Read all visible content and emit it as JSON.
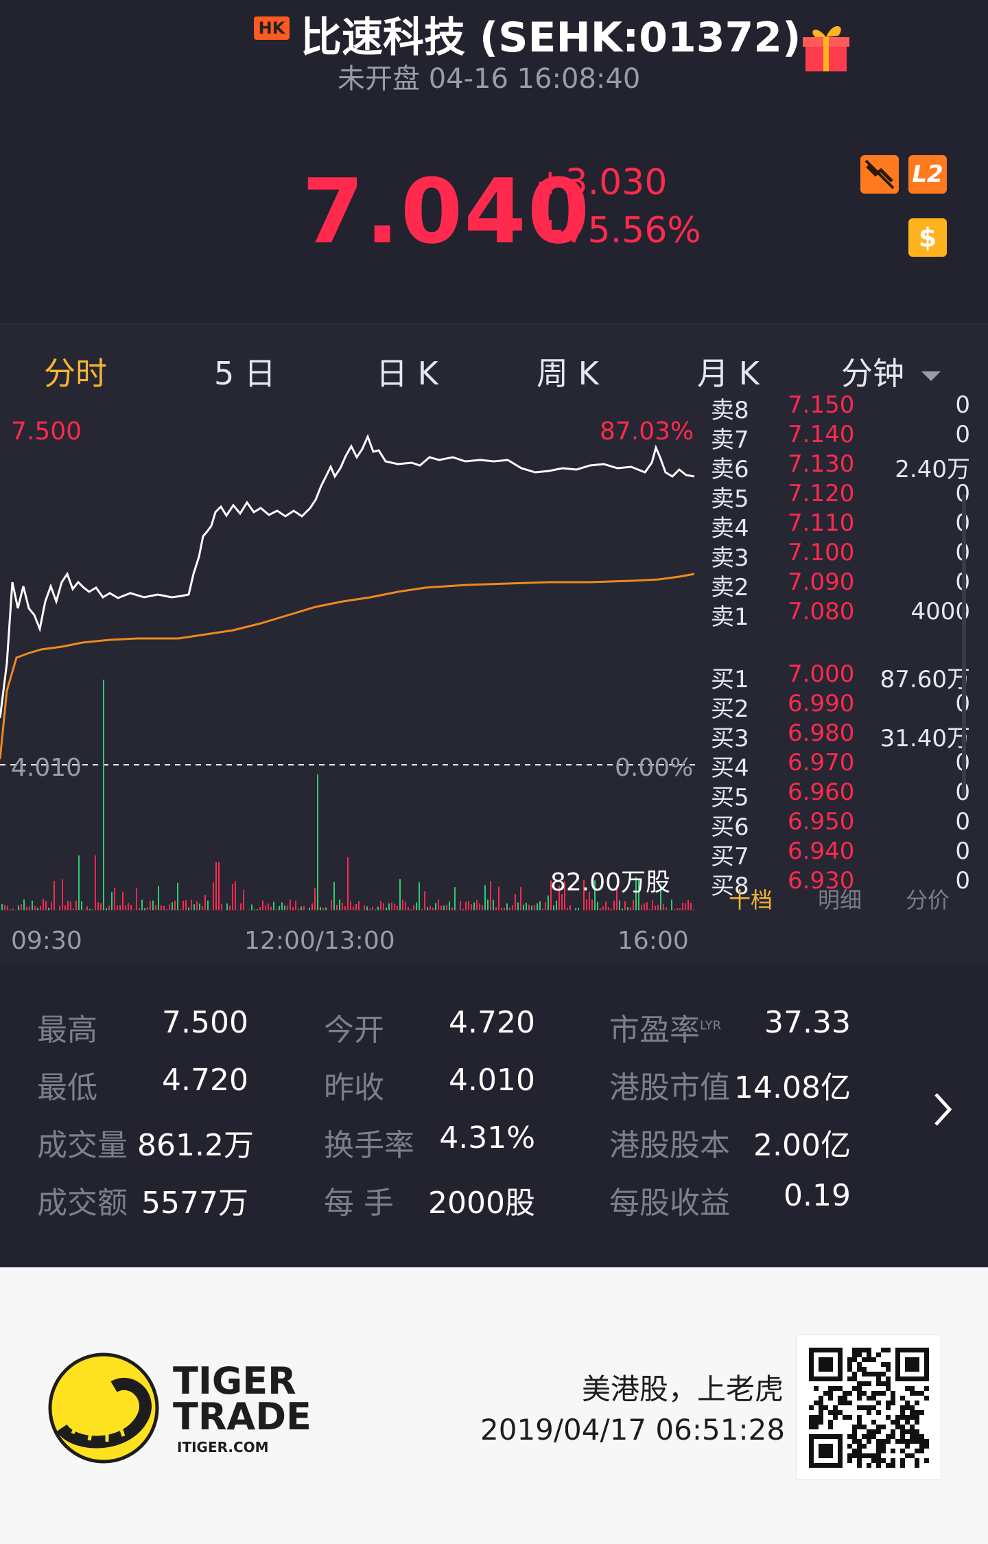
{
  "header": {
    "market_badge": "HK",
    "title": "比速科技 (SEHK:01372)",
    "status_time": "未开盘 04-16 16:08:40",
    "price": "7.040",
    "change": "+3.030",
    "change_pct": "+75.56%",
    "icons": [
      "gift-icon",
      "no-realtime-icon",
      "l2-icon",
      "dollar-icon"
    ],
    "l2_label": "L2",
    "dollar_label": "$"
  },
  "tabs": [
    {
      "label": "分时",
      "active": true
    },
    {
      "label": "5 日",
      "active": false
    },
    {
      "label": "日 K",
      "active": false
    },
    {
      "label": "周 K",
      "active": false
    },
    {
      "label": "月 K",
      "active": false
    },
    {
      "label": "分钟",
      "active": false
    }
  ],
  "chart": {
    "high_label": "7.500",
    "high_pct": "87.03%",
    "prev_close_label": "4.010",
    "prev_close_pct": "0.00%",
    "volume_label": "82.00万股",
    "time_labels": [
      "09:30",
      "12:00/13:00",
      "16:00"
    ],
    "colors": {
      "price_line": "#ffffff",
      "avg_line": "#f08a1c",
      "up": "#ff2a4e",
      "down": "#2ecc71"
    }
  },
  "chart_data": {
    "type": "line",
    "ylim": [
      4.01,
      7.5
    ],
    "series": [],
    "prev_close": 4.01
  },
  "order_book": {
    "asks": [
      {
        "label": "卖8",
        "price": "7.150",
        "vol": "0"
      },
      {
        "label": "卖7",
        "price": "7.140",
        "vol": "0"
      },
      {
        "label": "卖6",
        "price": "7.130",
        "vol": "2.40万"
      },
      {
        "label": "卖5",
        "price": "7.120",
        "vol": "0"
      },
      {
        "label": "卖4",
        "price": "7.110",
        "vol": "0"
      },
      {
        "label": "卖3",
        "price": "7.100",
        "vol": "0"
      },
      {
        "label": "卖2",
        "price": "7.090",
        "vol": "0"
      },
      {
        "label": "卖1",
        "price": "7.080",
        "vol": "4000"
      }
    ],
    "bids": [
      {
        "label": "买1",
        "price": "7.000",
        "vol": "87.60万"
      },
      {
        "label": "买2",
        "price": "6.990",
        "vol": "0"
      },
      {
        "label": "买3",
        "price": "6.980",
        "vol": "31.40万"
      },
      {
        "label": "买4",
        "price": "6.970",
        "vol": "0"
      },
      {
        "label": "买5",
        "price": "6.960",
        "vol": "0"
      },
      {
        "label": "买6",
        "price": "6.950",
        "vol": "0"
      },
      {
        "label": "买7",
        "price": "6.940",
        "vol": "0"
      },
      {
        "label": "买8",
        "price": "6.930",
        "vol": "0"
      }
    ],
    "tabs": [
      {
        "label": "十档",
        "active": true
      },
      {
        "label": "明细",
        "active": false
      },
      {
        "label": "分价",
        "active": false
      }
    ]
  },
  "stats": {
    "col1": [
      {
        "label": "最高",
        "value": "7.500"
      },
      {
        "label": "最低",
        "value": "4.720"
      },
      {
        "label": "成交量",
        "value": "861.2万"
      },
      {
        "label": "成交额",
        "value": "5577万"
      }
    ],
    "col2": [
      {
        "label": "今开",
        "value": "4.720"
      },
      {
        "label": "昨收",
        "value": "4.010"
      },
      {
        "label": "换手率",
        "value": "4.31%"
      },
      {
        "label": "每 手",
        "value": "2000股"
      }
    ],
    "col3": [
      {
        "label": "市盈率",
        "sup": "LYR",
        "value": "37.33"
      },
      {
        "label": "港股市值",
        "value": "14.08亿"
      },
      {
        "label": "港股股本",
        "value": "2.00亿"
      },
      {
        "label": "每股收益",
        "value": "0.19"
      }
    ]
  },
  "footer": {
    "brand_line1": "TIGER",
    "brand_line2": "TRADE",
    "brand_url": "ITIGER.COM",
    "slogan": "美港股，上老虎",
    "timestamp": "2019/04/17 06:51:28"
  }
}
